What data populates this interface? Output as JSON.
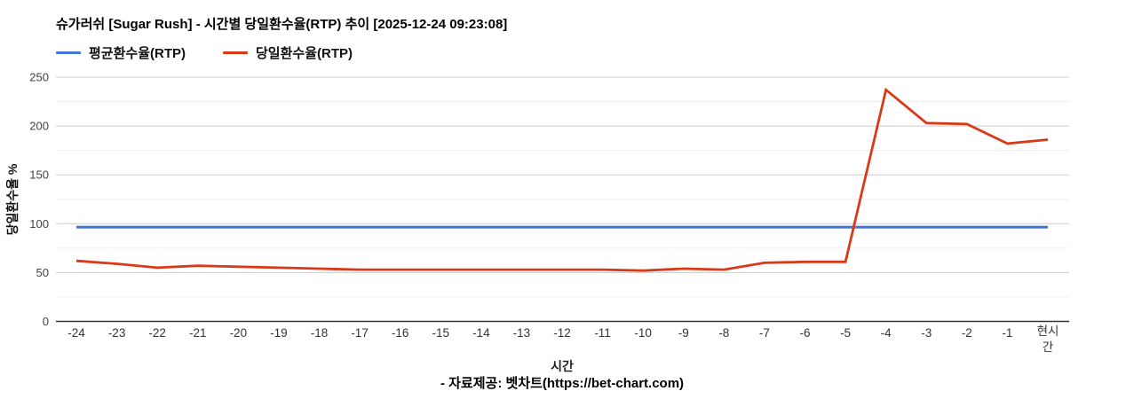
{
  "header": {
    "title": "슈가러쉬 [Sugar Rush] - 시간별 당일환수율(RTP) 추이 [2025-12-24 09:23:08]"
  },
  "legend": {
    "items": [
      {
        "label": "평균환수율(RTP)"
      },
      {
        "label": "당일환수율(RTP)"
      }
    ]
  },
  "footer": {
    "credit": "- 자료제공: 벳차트(https://bet-chart.com)"
  },
  "colors": {
    "average_line": "#4677d8",
    "daily_line": "#da3917",
    "major_grid": "#cccccc",
    "minor_grid": "#f0f0f0",
    "baseline": "#333333",
    "tick_text": "#424242"
  },
  "chart_data": {
    "type": "line",
    "title": "슈가러쉬 [Sugar Rush] - 시간별 당일환수율(RTP) 추이 [2025-12-24 09:23:08]",
    "xlabel": "시간",
    "ylabel": "당일환수율 %",
    "ylim": [
      0,
      250
    ],
    "y_ticks": [
      0,
      50,
      100,
      150,
      200,
      250
    ],
    "y_minor_ticks": [
      25,
      75,
      125,
      175,
      225
    ],
    "grid": true,
    "legend_position": "top",
    "categories": [
      "-24",
      "-23",
      "-22",
      "-21",
      "-20",
      "-19",
      "-18",
      "-17",
      "-16",
      "-15",
      "-14",
      "-13",
      "-12",
      "-11",
      "-10",
      "-9",
      "-8",
      "-7",
      "-6",
      "-5",
      "-4",
      "-3",
      "-2",
      "-1",
      "현시간"
    ],
    "series": [
      {
        "name": "평균환수율(RTP)",
        "color": "#4677d8",
        "values": [
          96.5,
          96.5,
          96.5,
          96.5,
          96.5,
          96.5,
          96.5,
          96.5,
          96.5,
          96.5,
          96.5,
          96.5,
          96.5,
          96.5,
          96.5,
          96.5,
          96.5,
          96.5,
          96.5,
          96.5,
          96.5,
          96.5,
          96.5,
          96.5,
          96.5
        ]
      },
      {
        "name": "당일환수율(RTP)",
        "color": "#da3917",
        "values": [
          62,
          59,
          55,
          57,
          56,
          55,
          54,
          53,
          53,
          53,
          53,
          53,
          53,
          53,
          52,
          54,
          53,
          60,
          61,
          61,
          237,
          203,
          202,
          182,
          186
        ]
      }
    ]
  }
}
